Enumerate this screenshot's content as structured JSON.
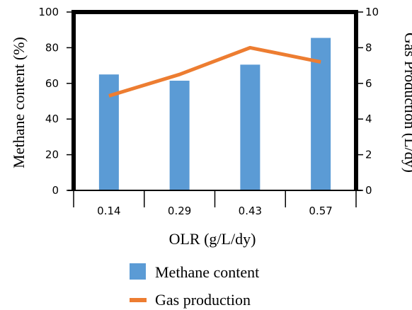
{
  "chart_data": {
    "type": "bar+line",
    "categories": [
      "0.14",
      "0.29",
      "0.43",
      "0.57"
    ],
    "xlabel": "OLR (g/L/dy)",
    "ylabel_left": "Methane content (%)",
    "ylabel_right": "Gas Production (L/dy)",
    "ylim_left": [
      0,
      100
    ],
    "ylim_right": [
      0,
      10
    ],
    "yticks_left": [
      "0",
      "20",
      "40",
      "60",
      "80",
      "100"
    ],
    "yticks_right": [
      "0",
      "2",
      "4",
      "6",
      "8",
      "10"
    ],
    "grid": false,
    "legend_position": "bottom",
    "series": [
      {
        "name": "Methane content",
        "type": "bar",
        "axis": "left",
        "color": "#5b9bd5",
        "values": [
          65,
          61.5,
          70.5,
          85.5
        ]
      },
      {
        "name": "Gas production",
        "type": "line",
        "axis": "right",
        "color": "#ed7d31",
        "values": [
          5.3,
          6.5,
          8.0,
          7.2
        ]
      }
    ]
  }
}
